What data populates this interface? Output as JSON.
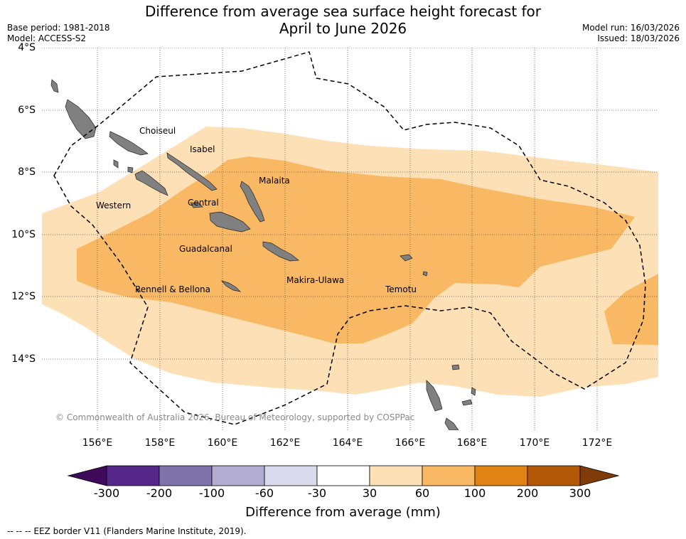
{
  "header": {
    "title_line1": "Difference from average sea surface height forecast for",
    "title_line2": "April to June 2026",
    "base_period": "Base period: 1981-2018",
    "model": "Model: ACCESS-S2",
    "model_run": "Model run: 16/03/2026",
    "issued": "Issued: 18/03/2026"
  },
  "axes": {
    "latitude_labels": [
      "4°S",
      "6°S",
      "8°S",
      "10°S",
      "12°S",
      "14°S"
    ],
    "longitude_labels": [
      "156°E",
      "158°E",
      "160°E",
      "162°E",
      "164°E",
      "166°E",
      "168°E",
      "170°E",
      "172°E"
    ]
  },
  "places": [
    "Choiseul",
    "Isabel",
    "Malaita",
    "Western",
    "Central",
    "Guadalcanal",
    "Makira-Ulawa",
    "Rennell & Bellona",
    "Temotu"
  ],
  "copyright": "© Commonwealth of Australia 2026, Bureau of Meteorology, supported by COSPPac",
  "colorbar": {
    "title": "Difference from average (mm)",
    "ticks": [
      "-300",
      "-200",
      "-100",
      "-60",
      "-30",
      "30",
      "60",
      "100",
      "200",
      "300"
    ],
    "colors": [
      "#3f0a5a",
      "#542788",
      "#8073ac",
      "#b2abd2",
      "#d8daeb",
      "#ffffff",
      "#fee0b6",
      "#f9b863",
      "#e08214",
      "#b35806",
      "#7f3b08"
    ]
  },
  "legend": {
    "eez_note": "--  --  -- EEZ border V11 (Flanders Marine Institute, 2019)."
  }
}
